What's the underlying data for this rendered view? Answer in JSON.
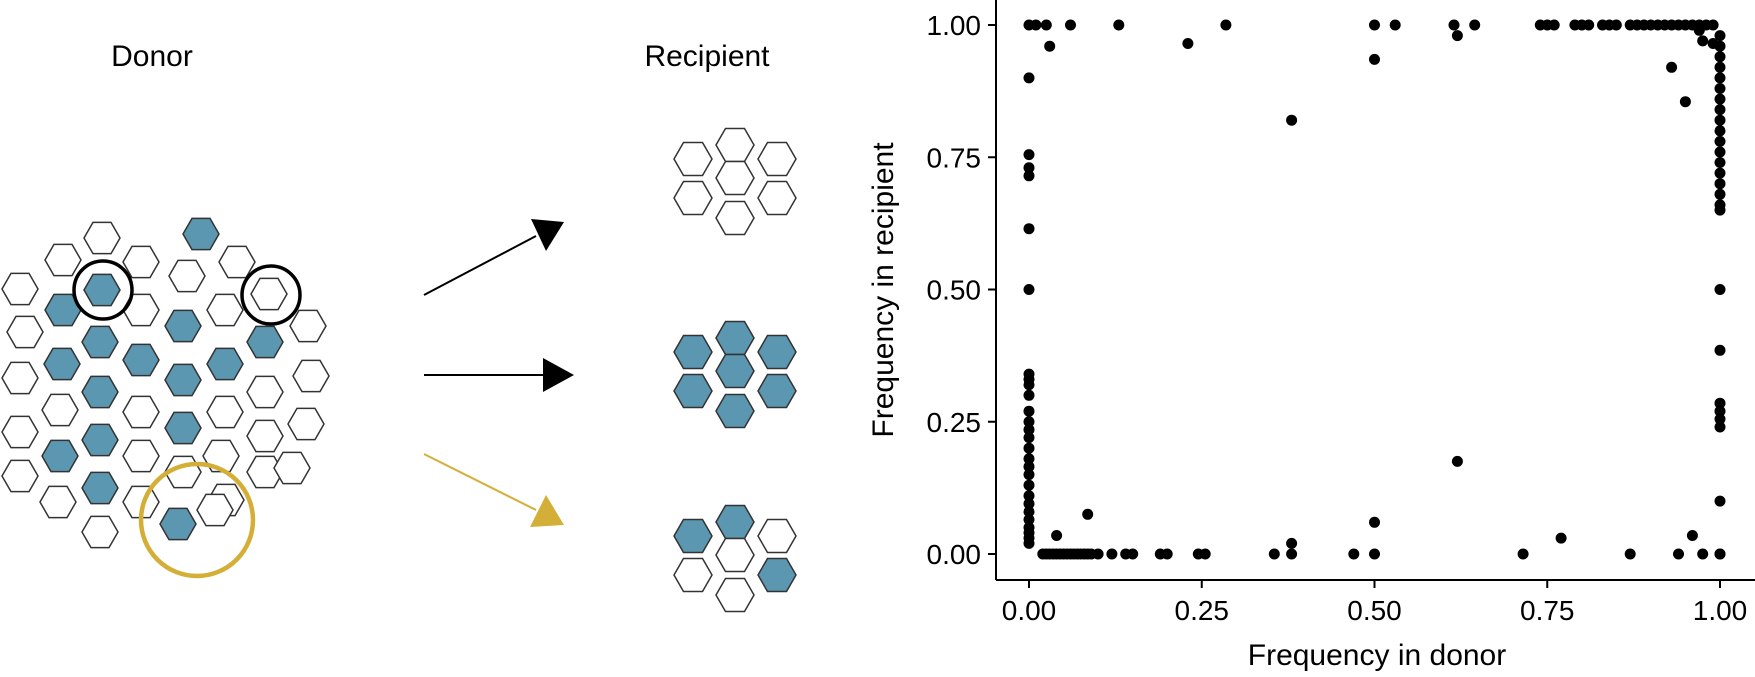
{
  "panel_labels": {
    "donor": "Donor",
    "recipient": "Recipient"
  },
  "colors": {
    "filled_hexagon": "#5b97b1",
    "empty_hexagon": "#ffffff",
    "outline": "#333333",
    "gold": "#d4af37",
    "black": "#000000"
  },
  "illustration": {
    "donor_population": "hexagon-cluster-mixed-filled-and-empty",
    "transmission_arrows": [
      {
        "target": "recipient-1",
        "color": "black"
      },
      {
        "target": "recipient-2",
        "color": "black"
      },
      {
        "target": "recipient-3",
        "color": "gold"
      }
    ],
    "recipients": [
      {
        "filled_count": 0,
        "total": 7
      },
      {
        "filled_count": 7,
        "total": 7
      },
      {
        "filled_count": 3,
        "total": 7
      }
    ]
  },
  "chart_data": {
    "type": "scatter",
    "xlabel": "Frequency in donor",
    "ylabel": "Frequency in recipient",
    "xlim": [
      0,
      1
    ],
    "ylim": [
      0,
      1
    ],
    "xticks": [
      "0.00",
      "0.25",
      "0.50",
      "0.75",
      "1.00"
    ],
    "yticks": [
      "0.00",
      "0.25",
      "0.50",
      "0.75",
      "1.00"
    ],
    "grid": false,
    "points": [
      [
        0.0,
        1.0
      ],
      [
        0.01,
        1.0
      ],
      [
        0.025,
        1.0
      ],
      [
        0.06,
        1.0
      ],
      [
        0.13,
        1.0
      ],
      [
        0.03,
        0.96
      ],
      [
        0.23,
        0.965
      ],
      [
        0.285,
        1.0
      ],
      [
        0.5,
        1.0
      ],
      [
        0.53,
        1.0
      ],
      [
        0.5,
        0.935
      ],
      [
        0.615,
        1.0
      ],
      [
        0.645,
        1.0
      ],
      [
        0.62,
        0.98
      ],
      [
        0.74,
        1.0
      ],
      [
        0.75,
        1.0
      ],
      [
        0.76,
        1.0
      ],
      [
        0.79,
        1.0
      ],
      [
        0.8,
        1.0
      ],
      [
        0.81,
        1.0
      ],
      [
        0.83,
        1.0
      ],
      [
        0.84,
        1.0
      ],
      [
        0.85,
        1.0
      ],
      [
        0.87,
        1.0
      ],
      [
        0.88,
        1.0
      ],
      [
        0.89,
        1.0
      ],
      [
        0.9,
        1.0
      ],
      [
        0.91,
        1.0
      ],
      [
        0.92,
        1.0
      ],
      [
        0.93,
        1.0
      ],
      [
        0.94,
        1.0
      ],
      [
        0.95,
        1.0
      ],
      [
        0.96,
        1.0
      ],
      [
        0.97,
        1.0
      ],
      [
        0.98,
        1.0
      ],
      [
        0.99,
        1.0
      ],
      [
        0.97,
        0.99
      ],
      [
        0.975,
        0.97
      ],
      [
        0.99,
        0.965
      ],
      [
        0.93,
        0.92
      ],
      [
        0.95,
        0.855
      ],
      [
        0.38,
        0.82
      ],
      [
        1.0,
        0.98
      ],
      [
        1.0,
        0.96
      ],
      [
        1.0,
        0.94
      ],
      [
        1.0,
        0.92
      ],
      [
        1.0,
        0.9
      ],
      [
        1.0,
        0.88
      ],
      [
        1.0,
        0.86
      ],
      [
        1.0,
        0.84
      ],
      [
        1.0,
        0.82
      ],
      [
        1.0,
        0.8
      ],
      [
        1.0,
        0.78
      ],
      [
        1.0,
        0.76
      ],
      [
        1.0,
        0.74
      ],
      [
        1.0,
        0.72
      ],
      [
        1.0,
        0.7
      ],
      [
        1.0,
        0.68
      ],
      [
        1.0,
        0.66
      ],
      [
        1.0,
        0.65
      ],
      [
        1.0,
        0.5
      ],
      [
        1.0,
        0.385
      ],
      [
        1.0,
        0.285
      ],
      [
        1.0,
        0.27
      ],
      [
        1.0,
        0.255
      ],
      [
        1.0,
        0.24
      ],
      [
        1.0,
        0.1
      ],
      [
        1.0,
        0.0
      ],
      [
        0.0,
        0.9
      ],
      [
        0.0,
        0.755
      ],
      [
        0.0,
        0.73
      ],
      [
        0.0,
        0.715
      ],
      [
        0.0,
        0.615
      ],
      [
        0.0,
        0.5
      ],
      [
        0.0,
        0.34
      ],
      [
        0.0,
        0.33
      ],
      [
        0.0,
        0.32
      ],
      [
        0.0,
        0.3
      ],
      [
        0.0,
        0.27
      ],
      [
        0.0,
        0.25
      ],
      [
        0.0,
        0.235
      ],
      [
        0.0,
        0.22
      ],
      [
        0.0,
        0.2
      ],
      [
        0.0,
        0.18
      ],
      [
        0.0,
        0.165
      ],
      [
        0.0,
        0.15
      ],
      [
        0.0,
        0.13
      ],
      [
        0.0,
        0.11
      ],
      [
        0.0,
        0.095
      ],
      [
        0.0,
        0.08
      ],
      [
        0.0,
        0.065
      ],
      [
        0.0,
        0.05
      ],
      [
        0.0,
        0.04
      ],
      [
        0.0,
        0.03
      ],
      [
        0.0,
        0.02
      ],
      [
        0.04,
        0.035
      ],
      [
        0.085,
        0.075
      ],
      [
        0.02,
        0.0
      ],
      [
        0.025,
        0.0
      ],
      [
        0.03,
        0.0
      ],
      [
        0.035,
        0.0
      ],
      [
        0.04,
        0.0
      ],
      [
        0.045,
        0.0
      ],
      [
        0.05,
        0.0
      ],
      [
        0.055,
        0.0
      ],
      [
        0.06,
        0.0
      ],
      [
        0.065,
        0.0
      ],
      [
        0.07,
        0.0
      ],
      [
        0.075,
        0.0
      ],
      [
        0.08,
        0.0
      ],
      [
        0.085,
        0.0
      ],
      [
        0.09,
        0.0
      ],
      [
        0.1,
        0.0
      ],
      [
        0.12,
        0.0
      ],
      [
        0.14,
        0.0
      ],
      [
        0.15,
        0.0
      ],
      [
        0.19,
        0.0
      ],
      [
        0.2,
        0.0
      ],
      [
        0.245,
        0.0
      ],
      [
        0.255,
        0.0
      ],
      [
        0.355,
        0.0
      ],
      [
        0.38,
        0.0
      ],
      [
        0.38,
        0.02
      ],
      [
        0.47,
        0.0
      ],
      [
        0.5,
        0.0
      ],
      [
        0.5,
        0.06
      ],
      [
        0.62,
        0.175
      ],
      [
        0.715,
        0.0
      ],
      [
        0.77,
        0.03
      ],
      [
        0.87,
        0.0
      ],
      [
        0.94,
        0.0
      ],
      [
        0.96,
        0.035
      ],
      [
        0.975,
        0.0
      ],
      [
        1.0,
        0.0
      ]
    ]
  }
}
